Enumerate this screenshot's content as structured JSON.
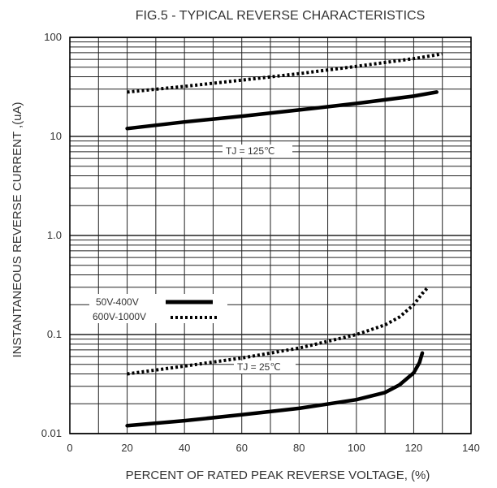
{
  "chart_data": {
    "type": "line",
    "title": "FIG.5 - TYPICAL REVERSE CHARACTERISTICS",
    "xlabel": "PERCENT OF RATED PEAK REVERSE VOLTAGE, (%)",
    "ylabel": "INSTANTANEOUS REVERSE CURRENT ,(uA)",
    "xlim": [
      0,
      140
    ],
    "ylim": [
      0.01,
      100
    ],
    "y_scale": "log",
    "grid": true,
    "x_ticks": [
      "0",
      "20",
      "40",
      "60",
      "80",
      "100",
      "120",
      "140"
    ],
    "y_ticks": [
      "0.01",
      "0.1",
      "1.0",
      "10",
      "100"
    ],
    "annotations": [
      "TJ = 125℃",
      "TJ = 25℃"
    ],
    "legend": {
      "position": "middle-left",
      "entries": [
        {
          "label": "50V-400V",
          "style": "solid"
        },
        {
          "label": "600V-1000V",
          "style": "dotted"
        }
      ]
    },
    "series": [
      {
        "legend": "50V-400V",
        "condition": "TJ = 125℃",
        "x": [
          20,
          40,
          60,
          80,
          100,
          120,
          128
        ],
        "y": [
          12,
          14,
          16,
          18.5,
          21.5,
          25.5,
          28
        ]
      },
      {
        "legend": "600V-1000V",
        "condition": "TJ = 125℃",
        "x": [
          20,
          40,
          60,
          80,
          100,
          120,
          130
        ],
        "y": [
          28,
          32,
          37,
          43,
          51,
          61,
          68
        ]
      },
      {
        "legend": "50V-400V",
        "condition": "TJ = 25℃",
        "x": [
          20,
          40,
          60,
          80,
          100,
          110,
          115,
          120,
          122,
          123
        ],
        "y": [
          0.012,
          0.0135,
          0.0155,
          0.018,
          0.022,
          0.026,
          0.031,
          0.041,
          0.052,
          0.065
        ]
      },
      {
        "legend": "600V-1000V",
        "condition": "TJ = 25℃",
        "x": [
          20,
          40,
          60,
          80,
          100,
          110,
          115,
          120,
          123,
          125
        ],
        "y": [
          0.04,
          0.048,
          0.058,
          0.073,
          0.1,
          0.125,
          0.15,
          0.2,
          0.26,
          0.3
        ]
      }
    ],
    "colors": {
      "line": "#000000",
      "grid": "#222222",
      "text": "#333333"
    }
  }
}
